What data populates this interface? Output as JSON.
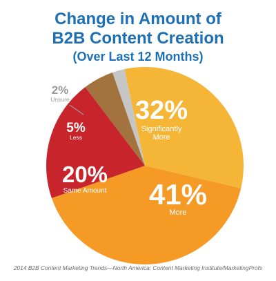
{
  "title": {
    "line1": "Change in Amount of",
    "line2": "B2B Content Creation",
    "line3": "(Over Last 12 Months)"
  },
  "caption": "2014 B2B Content Marketing Trends—North America: Content Marketing Institute/MarketingProfs",
  "chart_data": {
    "type": "pie",
    "slices": [
      {
        "label": "Significantly More",
        "label_lines": [
          "Significantly",
          "More"
        ],
        "value": 32,
        "display": "32%",
        "color": "#f5b638"
      },
      {
        "label": "More",
        "label_lines": [
          "More"
        ],
        "value": 41,
        "display": "41%",
        "color": "#f59a25"
      },
      {
        "label": "Same Amount",
        "label_lines": [
          "Same Amount"
        ],
        "value": 20,
        "display": "20%",
        "color": "#c8242c"
      },
      {
        "label": "Less",
        "label_lines": [
          "Less"
        ],
        "value": 5,
        "display": "5%",
        "color": "#a3733f"
      },
      {
        "label": "Unsure",
        "label_lines": [
          "Unsure"
        ],
        "value": 2,
        "display": "2%",
        "color": "#c6c6c6"
      }
    ],
    "text_color": "#ffffff",
    "outside_text_color": "#9a9a9a"
  }
}
